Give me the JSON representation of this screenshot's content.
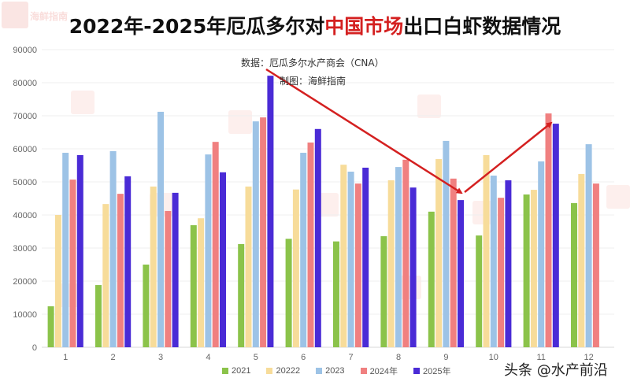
{
  "title": {
    "part1": "2022年-2025年厄瓜多尔对",
    "highlight": "中国市场",
    "part2": "出口白虾数据情况"
  },
  "source_label": "数据：厄瓜多尔水产商会（CNA）",
  "maker_label": "制图：海鲜指南",
  "watermark_text": "海鲜指南",
  "footer": "头条 @水产前沿",
  "colors": {
    "s2021": "#8bc34a",
    "s2022": "#f7dc9a",
    "s2023": "#9dc3e6",
    "s2024": "#f08080",
    "s2025": "#4a2bd6",
    "arrow": "#d42020",
    "title_highlight": "#d42020"
  },
  "legend": [
    {
      "label": "2021",
      "color": "#8bc34a"
    },
    {
      "label": "20222",
      "color": "#f7dc9a"
    },
    {
      "label": "2023",
      "color": "#9dc3e6"
    },
    {
      "label": "2024年",
      "color": "#f08080"
    },
    {
      "label": "2025年",
      "color": "#4a2bd6"
    }
  ],
  "chart_data": {
    "type": "bar",
    "title": "2022年-2025年厄瓜多尔对中国市场出口白虾数据情况",
    "subtitle": "数据：厄瓜多尔水产商会（CNA） 制图：海鲜指南",
    "xlabel": "",
    "ylabel": "",
    "categories": [
      "1",
      "2",
      "3",
      "4",
      "5",
      "6",
      "7",
      "8",
      "9",
      "10",
      "11",
      "12"
    ],
    "ylim": [
      0,
      90000
    ],
    "yticks": [
      0,
      10000,
      20000,
      30000,
      40000,
      50000,
      60000,
      70000,
      80000,
      90000
    ],
    "grid": true,
    "legend_position": "bottom",
    "series": [
      {
        "name": "2021",
        "color": "#8bc34a",
        "values": [
          12400,
          18800,
          25000,
          36900,
          31200,
          32800,
          32000,
          33600,
          41000,
          33800,
          46200,
          43600
        ]
      },
      {
        "name": "20222",
        "color": "#f7dc9a",
        "values": [
          40000,
          43300,
          48600,
          39000,
          48600,
          47700,
          55200,
          50500,
          56900,
          58100,
          47600,
          52400
        ]
      },
      {
        "name": "2023",
        "color": "#9dc3e6",
        "values": [
          58800,
          59300,
          71200,
          58300,
          68300,
          58800,
          53100,
          54500,
          62400,
          51900,
          56200,
          61400
        ]
      },
      {
        "name": "2024年",
        "color": "#f08080",
        "values": [
          50700,
          46400,
          41200,
          62100,
          69500,
          61900,
          49500,
          56700,
          51000,
          45200,
          70700,
          49500
        ]
      },
      {
        "name": "2025年",
        "color": "#4a2bd6",
        "values": [
          58100,
          51700,
          46700,
          52900,
          82100,
          66000,
          54300,
          48300,
          44500,
          50500,
          67600,
          null
        ]
      }
    ],
    "annotations": [
      {
        "type": "arrow",
        "from_month": 5,
        "to_month": 9,
        "description": "decline from May 2025 peak to September"
      },
      {
        "type": "arrow",
        "from_month": 9,
        "to_month": 11,
        "description": "rise from September to November"
      }
    ]
  }
}
